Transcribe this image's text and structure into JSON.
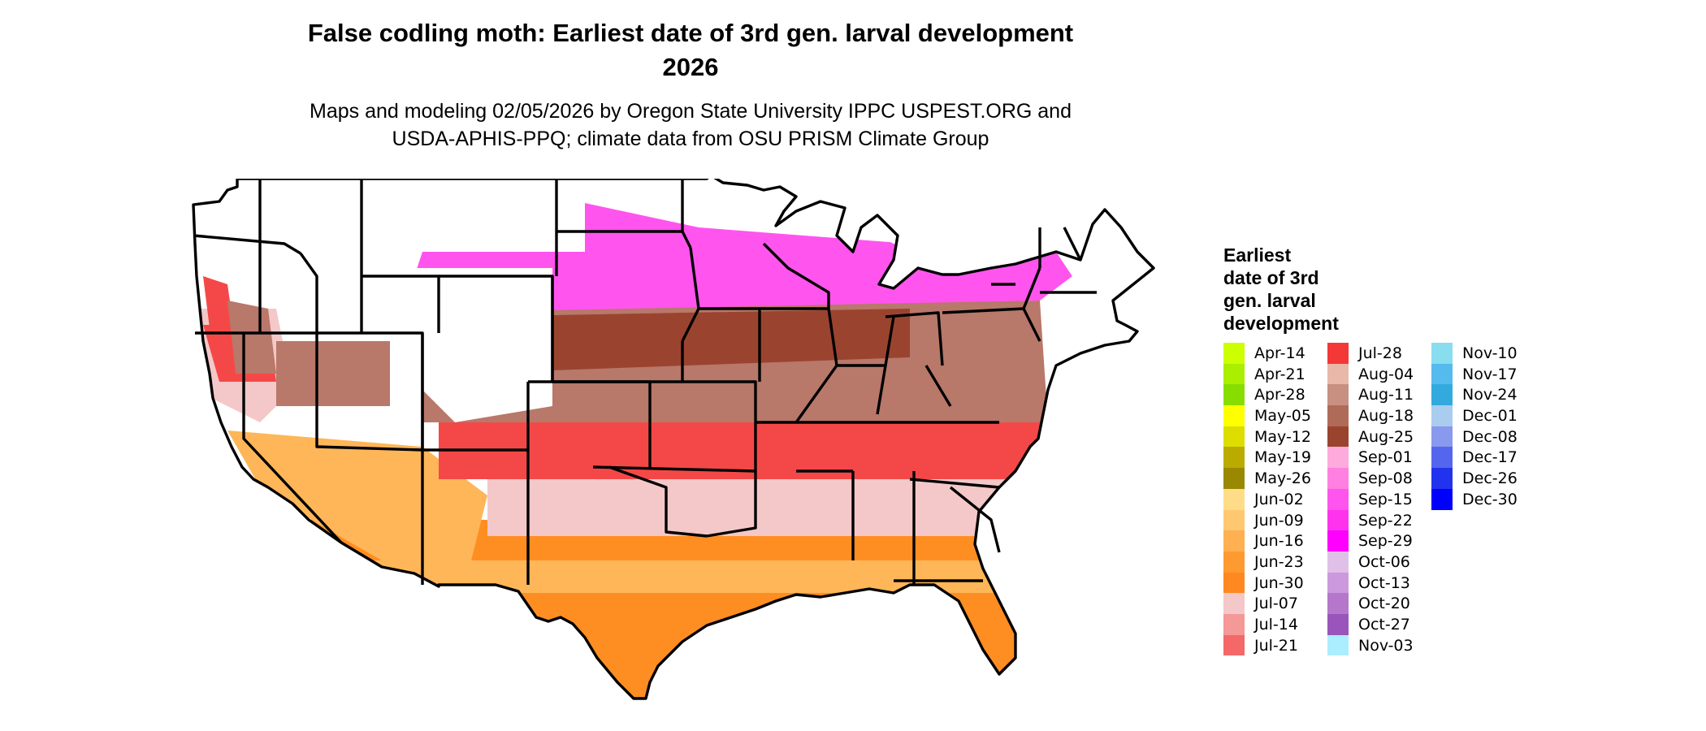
{
  "title": {
    "line1": "False codling moth: Earliest date of 3rd gen. larval development",
    "line2": "2026"
  },
  "subtitle": {
    "line1": "Maps and modeling 02/05/2026 by Oregon State University IPPC USPEST.ORG and",
    "line2": "USDA-APHIS-PPQ; climate data from OSU PRISM Climate Group"
  },
  "legend": {
    "title_lines": [
      "Earliest",
      "date of 3rd",
      "gen. larval",
      "development"
    ],
    "items": [
      {
        "label": "Apr-14",
        "color": "#ccff00"
      },
      {
        "label": "Apr-21",
        "color": "#aaee00"
      },
      {
        "label": "Apr-28",
        "color": "#88dd00"
      },
      {
        "label": "May-05",
        "color": "#ffff00"
      },
      {
        "label": "May-12",
        "color": "#dddd00"
      },
      {
        "label": "May-19",
        "color": "#bbaa00"
      },
      {
        "label": "May-26",
        "color": "#998800"
      },
      {
        "label": "Jun-02",
        "color": "#ffdd88"
      },
      {
        "label": "Jun-09",
        "color": "#ffc870"
      },
      {
        "label": "Jun-16",
        "color": "#ffb050"
      },
      {
        "label": "Jun-23",
        "color": "#ff9a30"
      },
      {
        "label": "Jun-30",
        "color": "#ff8820"
      },
      {
        "label": "Jul-07",
        "color": "#f4c8c8"
      },
      {
        "label": "Jul-14",
        "color": "#f49898"
      },
      {
        "label": "Jul-21",
        "color": "#f46868"
      },
      {
        "label": "Jul-28",
        "color": "#f43838"
      },
      {
        "label": "Aug-04",
        "color": "#e8b8a8"
      },
      {
        "label": "Aug-11",
        "color": "#c89080"
      },
      {
        "label": "Aug-18",
        "color": "#b06a58"
      },
      {
        "label": "Aug-25",
        "color": "#9a4430"
      },
      {
        "label": "Sep-01",
        "color": "#ffaadd"
      },
      {
        "label": "Sep-08",
        "color": "#ff80e0"
      },
      {
        "label": "Sep-15",
        "color": "#ff55ee"
      },
      {
        "label": "Sep-22",
        "color": "#ff33ee"
      },
      {
        "label": "Sep-29",
        "color": "#ff00ff"
      },
      {
        "label": "Oct-06",
        "color": "#e0c0e8"
      },
      {
        "label": "Oct-13",
        "color": "#cc99dd"
      },
      {
        "label": "Oct-20",
        "color": "#b477cc"
      },
      {
        "label": "Oct-27",
        "color": "#9955bb"
      },
      {
        "label": "Nov-03",
        "color": "#aaeeff"
      },
      {
        "label": "Nov-10",
        "color": "#88ddee"
      },
      {
        "label": "Nov-17",
        "color": "#55bbee"
      },
      {
        "label": "Nov-24",
        "color": "#33aadd"
      },
      {
        "label": "Dec-01",
        "color": "#aaccee"
      },
      {
        "label": "Dec-08",
        "color": "#8899ee"
      },
      {
        "label": "Dec-17",
        "color": "#5566ee"
      },
      {
        "label": "Dec-26",
        "color": "#2233ee"
      },
      {
        "label": "Dec-30",
        "color": "#0000ff"
      }
    ]
  },
  "map": {
    "region": "Contiguous United States",
    "palette": {
      "no_development": "#ffffff",
      "border": "#000000"
    }
  }
}
